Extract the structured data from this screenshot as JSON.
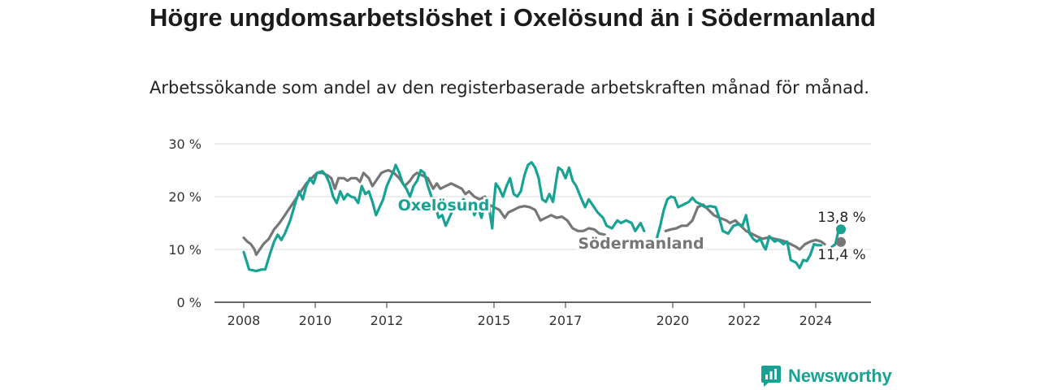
{
  "title": "Högre ungdomsarbetslöshet i Oxelösund än i Södermanland",
  "subtitle": "Arbetssökande som andel av den registerbaserade arbetskraften månad för månad.",
  "brand": {
    "name": "Newsworthy",
    "color": "#17a293"
  },
  "chart_data": {
    "type": "line",
    "title": "Högre ungdomsarbetslöshet i Oxelösund än i Södermanland",
    "subtitle": "Arbetssökande som andel av den registerbaserade arbetskraften månad för månad.",
    "xlabel": "",
    "ylabel": "",
    "xlim": [
      2008,
      2025.6
    ],
    "ylim": [
      0,
      30
    ],
    "y_ticks": [
      0,
      10,
      20,
      30
    ],
    "y_tick_labels": [
      "0 %",
      "10 %",
      "20 %",
      "30 %"
    ],
    "x_ticks": [
      2008,
      2010,
      2012,
      2015,
      2017,
      2020,
      2022,
      2024
    ],
    "x_tick_labels": [
      "2008",
      "2010",
      "2012",
      "2015",
      "2017",
      "2020",
      "2022",
      "2024"
    ],
    "grid": true,
    "series": [
      {
        "name": "Oxelösund",
        "color": "#17a293",
        "end_label": "13,8 %",
        "end_value": 13.8,
        "segments": [
          [
            [
              2008.0,
              9.5
            ],
            [
              2008.15,
              6.2
            ],
            [
              2008.35,
              5.9
            ],
            [
              2008.5,
              6.2
            ],
            [
              2008.6,
              6.2
            ],
            [
              2008.75,
              9.5
            ],
            [
              2008.85,
              11.5
            ],
            [
              2008.95,
              12.8
            ],
            [
              2009.05,
              11.8
            ],
            [
              2009.15,
              13.0
            ],
            [
              2009.3,
              15.5
            ],
            [
              2009.45,
              19.0
            ],
            [
              2009.55,
              21.0
            ],
            [
              2009.65,
              19.5
            ],
            [
              2009.75,
              22.0
            ],
            [
              2009.85,
              23.5
            ],
            [
              2009.95,
              22.5
            ],
            [
              2010.05,
              24.5
            ],
            [
              2010.2,
              24.8
            ],
            [
              2010.3,
              24.0
            ],
            [
              2010.4,
              22.5
            ],
            [
              2010.5,
              20.0
            ],
            [
              2010.6,
              18.8
            ],
            [
              2010.7,
              21.0
            ],
            [
              2010.8,
              19.5
            ],
            [
              2010.9,
              20.5
            ],
            [
              2011.0,
              20.0
            ],
            [
              2011.1,
              19.8
            ],
            [
              2011.2,
              18.8
            ],
            [
              2011.3,
              22.0
            ],
            [
              2011.4,
              20.5
            ],
            [
              2011.5,
              21.0
            ],
            [
              2011.6,
              19.0
            ],
            [
              2011.7,
              16.5
            ],
            [
              2011.8,
              18.0
            ],
            [
              2011.9,
              19.5
            ],
            [
              2012.0,
              22.0
            ],
            [
              2012.1,
              23.5
            ],
            [
              2012.2,
              25.0
            ],
            [
              2012.25,
              26.0
            ],
            [
              2012.35,
              24.5
            ],
            [
              2012.45,
              22.5
            ],
            [
              2012.55,
              21.5
            ],
            [
              2012.65,
              20.0
            ],
            [
              2012.75,
              22.0
            ],
            [
              2012.85,
              23.0
            ],
            [
              2012.95,
              25.0
            ],
            [
              2013.05,
              24.5
            ],
            [
              2013.15,
              22.0
            ],
            [
              2013.25,
              20.0
            ],
            [
              2013.35,
              18.5
            ],
            [
              2013.45,
              16.0
            ],
            [
              2013.55,
              16.5
            ],
            [
              2013.65,
              14.5
            ],
            [
              2013.75,
              16.0
            ],
            [
              2013.85,
              17.5
            ],
            [
              2013.95,
              19.0
            ],
            [
              2014.05,
              18.8
            ],
            [
              2014.15,
              19.5
            ],
            [
              2014.25,
              18.0
            ],
            [
              2014.35,
              19.0
            ],
            [
              2014.45,
              16.5
            ],
            [
              2014.55,
              18.0
            ],
            [
              2014.65,
              16.0
            ],
            [
              2014.75,
              19.0
            ],
            [
              2014.85,
              18.5
            ],
            [
              2014.95,
              14.0
            ],
            [
              2015.0,
              19.0
            ],
            [
              2015.05,
              22.5
            ],
            [
              2015.15,
              21.5
            ],
            [
              2015.25,
              20.0
            ],
            [
              2015.35,
              22.0
            ],
            [
              2015.45,
              23.5
            ],
            [
              2015.55,
              20.5
            ],
            [
              2015.65,
              20.0
            ],
            [
              2015.75,
              21.0
            ],
            [
              2015.85,
              24.0
            ],
            [
              2015.95,
              26.0
            ],
            [
              2016.05,
              26.5
            ],
            [
              2016.15,
              25.5
            ],
            [
              2016.25,
              23.5
            ],
            [
              2016.35,
              19.5
            ],
            [
              2016.45,
              19.0
            ],
            [
              2016.55,
              20.5
            ],
            [
              2016.65,
              19.0
            ],
            [
              2016.75,
              23.5
            ],
            [
              2016.8,
              25.5
            ],
            [
              2016.9,
              25.0
            ],
            [
              2017.0,
              23.5
            ],
            [
              2017.1,
              25.5
            ],
            [
              2017.2,
              23.0
            ],
            [
              2017.3,
              22.0
            ],
            [
              2017.45,
              19.5
            ],
            [
              2017.55,
              18.0
            ],
            [
              2017.65,
              19.5
            ],
            [
              2017.75,
              18.5
            ],
            [
              2017.9,
              17.0
            ],
            [
              2018.05,
              16.0
            ],
            [
              2018.15,
              14.5
            ],
            [
              2018.3,
              14.0
            ],
            [
              2018.45,
              15.5
            ],
            [
              2018.55,
              15.0
            ],
            [
              2018.7,
              15.5
            ],
            [
              2018.85,
              15.0
            ],
            [
              2018.95,
              13.5
            ],
            [
              2019.1,
              15.0
            ],
            [
              2019.2,
              13.5
            ]
          ],
          [
            [
              2019.55,
              12.0
            ],
            [
              2019.65,
              14.5
            ],
            [
              2019.75,
              17.5
            ],
            [
              2019.85,
              19.5
            ],
            [
              2019.95,
              20.0
            ],
            [
              2020.05,
              19.8
            ],
            [
              2020.15,
              18.0
            ],
            [
              2020.3,
              18.5
            ],
            [
              2020.45,
              19.0
            ],
            [
              2020.55,
              19.8
            ],
            [
              2020.65,
              19.0
            ],
            [
              2020.8,
              18.5
            ],
            [
              2020.9,
              18.0
            ],
            [
              2021.05,
              18.2
            ],
            [
              2021.2,
              18.0
            ],
            [
              2021.3,
              16.0
            ],
            [
              2021.4,
              13.5
            ],
            [
              2021.55,
              13.0
            ],
            [
              2021.7,
              14.5
            ],
            [
              2021.85,
              14.8
            ],
            [
              2021.95,
              14.5
            ],
            [
              2022.05,
              16.5
            ],
            [
              2022.15,
              13.0
            ],
            [
              2022.25,
              12.0
            ],
            [
              2022.35,
              11.5
            ],
            [
              2022.45,
              12.0
            ],
            [
              2022.55,
              10.5
            ],
            [
              2022.6,
              10.0
            ],
            [
              2022.7,
              12.5
            ],
            [
              2022.85,
              11.5
            ],
            [
              2022.95,
              11.8
            ],
            [
              2023.1,
              11.0
            ],
            [
              2023.2,
              11.5
            ],
            [
              2023.3,
              8.0
            ],
            [
              2023.45,
              7.5
            ],
            [
              2023.55,
              6.5
            ],
            [
              2023.65,
              8.0
            ],
            [
              2023.75,
              7.8
            ],
            [
              2023.85,
              9.0
            ],
            [
              2023.95,
              11.0
            ],
            [
              2024.05,
              10.8
            ],
            [
              2024.15,
              10.8
            ]
          ],
          [
            [
              2024.45,
              10.5
            ],
            [
              2024.55,
              11.0
            ],
            [
              2024.65,
              14.0
            ]
          ]
        ]
      },
      {
        "name": "Södermanland",
        "color": "#767676",
        "end_label": "11,4 %",
        "end_value": 11.4,
        "segments": [
          [
            [
              2008.0,
              12.2
            ],
            [
              2008.1,
              11.5
            ],
            [
              2008.2,
              11.0
            ],
            [
              2008.3,
              10.0
            ],
            [
              2008.35,
              9.0
            ],
            [
              2008.45,
              10.0
            ],
            [
              2008.55,
              11.0
            ],
            [
              2008.7,
              12.0
            ],
            [
              2008.85,
              13.8
            ],
            [
              2009.0,
              15.0
            ],
            [
              2009.15,
              16.5
            ],
            [
              2009.3,
              18.0
            ],
            [
              2009.45,
              19.5
            ],
            [
              2009.6,
              21.0
            ],
            [
              2009.75,
              22.5
            ],
            [
              2009.9,
              23.5
            ],
            [
              2010.05,
              24.5
            ],
            [
              2010.2,
              24.5
            ],
            [
              2010.35,
              24.0
            ],
            [
              2010.45,
              23.5
            ],
            [
              2010.55,
              21.5
            ],
            [
              2010.65,
              23.5
            ],
            [
              2010.8,
              23.5
            ],
            [
              2010.9,
              23.0
            ],
            [
              2011.0,
              23.5
            ],
            [
              2011.15,
              23.5
            ],
            [
              2011.25,
              22.8
            ],
            [
              2011.35,
              24.5
            ],
            [
              2011.5,
              23.5
            ],
            [
              2011.6,
              22.0
            ],
            [
              2011.7,
              23.0
            ],
            [
              2011.85,
              24.5
            ],
            [
              2011.95,
              24.8
            ],
            [
              2012.05,
              25.0
            ],
            [
              2012.2,
              24.5
            ],
            [
              2012.35,
              23.5
            ],
            [
              2012.5,
              22.0
            ],
            [
              2012.65,
              23.0
            ],
            [
              2012.75,
              24.0
            ],
            [
              2012.85,
              24.5
            ],
            [
              2013.0,
              24.0
            ],
            [
              2013.15,
              23.5
            ],
            [
              2013.3,
              21.5
            ],
            [
              2013.4,
              22.5
            ],
            [
              2013.5,
              21.5
            ],
            [
              2013.65,
              22.0
            ],
            [
              2013.8,
              22.5
            ],
            [
              2013.95,
              22.0
            ],
            [
              2014.1,
              21.5
            ],
            [
              2014.2,
              20.5
            ],
            [
              2014.3,
              21.0
            ],
            [
              2014.45,
              20.0
            ],
            [
              2014.6,
              19.5
            ],
            [
              2014.75,
              20.0
            ],
            [
              2014.85,
              18.5
            ],
            [
              2015.0,
              18.0
            ],
            [
              2015.15,
              17.5
            ],
            [
              2015.3,
              16.0
            ],
            [
              2015.4,
              17.0
            ],
            [
              2015.55,
              17.5
            ],
            [
              2015.7,
              18.0
            ],
            [
              2015.85,
              18.2
            ],
            [
              2016.0,
              18.0
            ],
            [
              2016.15,
              17.5
            ],
            [
              2016.3,
              15.5
            ],
            [
              2016.45,
              16.0
            ],
            [
              2016.6,
              16.5
            ],
            [
              2016.75,
              16.0
            ],
            [
              2016.9,
              16.2
            ],
            [
              2017.05,
              15.5
            ],
            [
              2017.2,
              14.0
            ],
            [
              2017.35,
              13.5
            ],
            [
              2017.5,
              13.5
            ],
            [
              2017.65,
              14.0
            ],
            [
              2017.8,
              13.8
            ],
            [
              2017.95,
              13.0
            ],
            [
              2018.1,
              12.8
            ]
          ],
          [
            [
              2019.8,
              13.5
            ],
            [
              2019.95,
              13.8
            ],
            [
              2020.1,
              14.0
            ],
            [
              2020.25,
              14.5
            ],
            [
              2020.4,
              14.5
            ],
            [
              2020.55,
              15.5
            ],
            [
              2020.7,
              18.0
            ],
            [
              2020.85,
              18.5
            ],
            [
              2021.0,
              17.5
            ],
            [
              2021.15,
              16.5
            ],
            [
              2021.3,
              16.0
            ],
            [
              2021.5,
              15.5
            ],
            [
              2021.6,
              15.0
            ],
            [
              2021.75,
              15.5
            ],
            [
              2021.9,
              14.5
            ],
            [
              2022.05,
              13.5
            ],
            [
              2022.2,
              13.0
            ],
            [
              2022.35,
              12.5
            ],
            [
              2022.5,
              12.0
            ],
            [
              2022.7,
              12.3
            ],
            [
              2022.85,
              12.0
            ],
            [
              2023.0,
              11.8
            ],
            [
              2023.15,
              11.5
            ],
            [
              2023.3,
              11.0
            ],
            [
              2023.45,
              10.5
            ],
            [
              2023.55,
              10.0
            ],
            [
              2023.7,
              11.0
            ],
            [
              2023.85,
              11.5
            ],
            [
              2024.0,
              11.8
            ],
            [
              2024.15,
              11.5
            ],
            [
              2024.25,
              11.0
            ]
          ]
        ]
      }
    ],
    "series_labels_inline": true
  }
}
